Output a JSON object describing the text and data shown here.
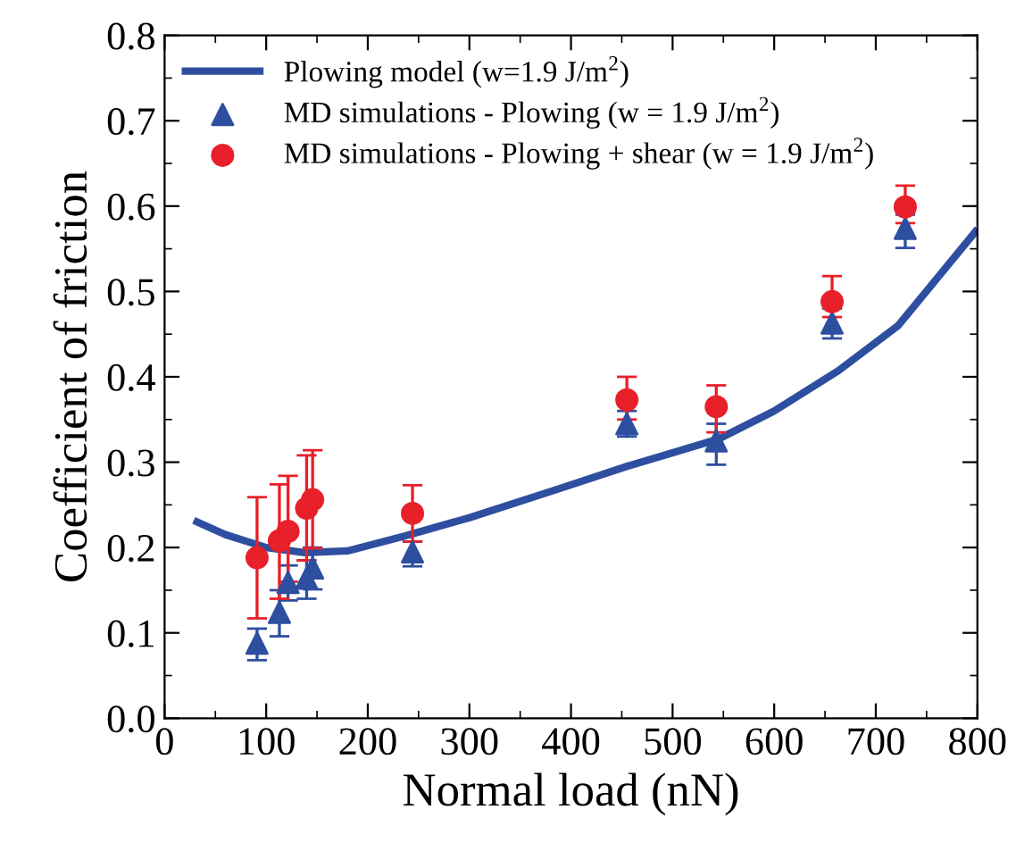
{
  "chart_data": {
    "type": "scatter",
    "xlabel": "Normal load (nN)",
    "ylabel": "Coefficient of friction",
    "xlim": [
      0,
      800
    ],
    "xticks": [
      0,
      100,
      200,
      300,
      400,
      500,
      600,
      700,
      800
    ],
    "ylim": [
      0,
      0.8
    ],
    "yticks": [
      {
        "value": 0,
        "label": "0.0"
      },
      0.1,
      0.2,
      0.3,
      0.4,
      0.5,
      0.6,
      0.7,
      0.8
    ],
    "legend": "top left",
    "grid": false,
    "series": [
      {
        "name": "Plowing model (w=1.9 J/m$^{2}$)",
        "type": "line",
        "color": "#2e4fa0",
        "marker": "none",
        "line_style": "solid",
        "x": [
          32,
          60,
          100,
          138,
          180,
          238,
          300,
          386,
          455,
          545,
          600,
          663,
          722,
          798
        ],
        "values": [
          0.23,
          0.215,
          0.2,
          0.194,
          0.196,
          0.214,
          0.235,
          0.268,
          0.295,
          0.327,
          0.36,
          0.407,
          0.46,
          0.57
        ]
      },
      {
        "name": "MD simulations - Plowing (w = 1.9 J/m$^{2}$)",
        "color": "#2e4fa0",
        "marker": "triangle",
        "x": [
          91,
          113,
          121.5,
          139.8,
          145.7,
          244,
          455,
          543,
          657,
          729
        ],
        "values": [
          0.088,
          0.124,
          0.159,
          0.164,
          0.176,
          0.195,
          0.345,
          0.325,
          0.463,
          0.574
        ],
        "errors": [
          [
            0.068,
            0.105
          ],
          [
            0.096,
            0.15
          ],
          [
            0.138,
            0.179
          ],
          [
            0.14,
            0.185
          ],
          [
            0.151,
            0.2
          ],
          [
            0.178,
            0.207
          ],
          [
            0.33,
            0.36
          ],
          [
            0.297,
            0.345
          ],
          [
            0.445,
            0.48
          ],
          [
            0.551,
            0.59
          ]
        ]
      },
      {
        "name": "MD simulations - Plowing + shear (w = 1.9 J/m$^{2}$)",
        "color": "#e8202a",
        "marker": "circle",
        "x": [
          91,
          113,
          121.5,
          139.8,
          145.7,
          244,
          455,
          543,
          657,
          729
        ],
        "values": [
          0.188,
          0.208,
          0.219,
          0.246,
          0.256,
          0.24,
          0.373,
          0.365,
          0.488,
          0.599
        ],
        "errors": [
          [
            0.117,
            0.259
          ],
          [
            0.14,
            0.274
          ],
          [
            0.16,
            0.284
          ],
          [
            0.185,
            0.308
          ],
          [
            0.199,
            0.314
          ],
          [
            0.207,
            0.273
          ],
          [
            0.35,
            0.4
          ],
          [
            0.335,
            0.39
          ],
          [
            0.47,
            0.518
          ],
          [
            0.58,
            0.624
          ]
        ]
      }
    ]
  }
}
